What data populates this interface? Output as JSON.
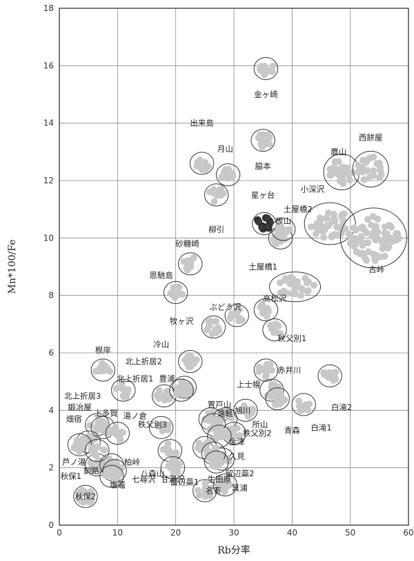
{
  "chart_data": {
    "type": "scatter",
    "xlabel": "Rb分率",
    "ylabel": "Mn*100/Fe",
    "xlim": [
      0,
      60
    ],
    "ylim": [
      0,
      18
    ],
    "xticks": [
      0,
      10,
      20,
      30,
      40,
      50,
      60
    ],
    "yticks": [
      0,
      2,
      4,
      6,
      8,
      10,
      12,
      14,
      16,
      18
    ],
    "grid": true,
    "marker_color": "#c8c8c8",
    "highlight_color": "#3a3a3a",
    "clusters": [
      {
        "name": "金ヶ崎",
        "center": [
          35.5,
          15.9
        ],
        "label_at": [
          35.5,
          15.0
        ]
      },
      {
        "name": "出来島",
        "center": [
          24.5,
          12.6
        ],
        "label_at": [
          24.5,
          14.0
        ]
      },
      {
        "name": "月山",
        "center": [
          29.0,
          12.2
        ],
        "label_at": [
          28.5,
          13.1
        ]
      },
      {
        "name": "脇本",
        "center": [
          35.0,
          13.4
        ],
        "label_at": [
          35.0,
          12.5
        ]
      },
      {
        "name": "鷹山",
        "center": [
          48.5,
          12.3
        ],
        "label_at": [
          48.0,
          13.0
        ]
      },
      {
        "name": "西餅屋",
        "center": [
          53.5,
          12.4
        ],
        "label_at": [
          53.5,
          13.5
        ]
      },
      {
        "name": "小深沢",
        "center": [
          46.5,
          10.5
        ],
        "label_at": [
          43.5,
          11.7
        ]
      },
      {
        "name": "星ヶ台",
        "center": [
          35.2,
          10.5
        ],
        "label_at": [
          35.0,
          11.5
        ],
        "highlight": true
      },
      {
        "name": "土屋橋2",
        "center": [
          38.0,
          10.0
        ],
        "label_at": [
          41.0,
          11.0
        ]
      },
      {
        "name": "板山",
        "center": [
          38.5,
          10.3
        ],
        "label_at": [
          38.5,
          10.6
        ]
      },
      {
        "name": "柳引",
        "center": [
          27.0,
          11.5
        ],
        "label_at": [
          27.0,
          10.3
        ]
      },
      {
        "name": "古峠",
        "center": [
          54.0,
          10.0
        ],
        "label_at": [
          54.5,
          8.9
        ]
      },
      {
        "name": "砂糖崎",
        "center": [
          22.5,
          9.1
        ],
        "label_at": [
          22.0,
          9.8
        ]
      },
      {
        "name": "恩馳島",
        "center": [
          20.0,
          8.1
        ],
        "label_at": [
          17.5,
          8.7
        ]
      },
      {
        "name": "土屋橋1",
        "center": [
          40.5,
          8.3
        ],
        "label_at": [
          35.0,
          9.0
        ]
      },
      {
        "name": "ぶどう沢",
        "center": [
          30.5,
          7.3
        ],
        "label_at": [
          28.5,
          7.6
        ]
      },
      {
        "name": "高松沢",
        "center": [
          35.5,
          7.5
        ],
        "label_at": [
          37.0,
          7.9
        ]
      },
      {
        "name": "牧ヶ沢",
        "center": [
          26.5,
          6.9
        ],
        "label_at": [
          21.0,
          7.1
        ]
      },
      {
        "name": "秋父別1",
        "center": [
          37.0,
          6.8
        ],
        "label_at": [
          40.0,
          6.5
        ]
      },
      {
        "name": "根岸",
        "center": [
          7.5,
          5.4
        ],
        "label_at": [
          7.5,
          6.1
        ]
      },
      {
        "name": "冷山",
        "center": [
          22.5,
          5.7
        ],
        "label_at": [
          17.5,
          6.3
        ]
      },
      {
        "name": "北上折居2",
        "center": [
          21.5,
          4.8
        ],
        "label_at": [
          14.5,
          5.7
        ]
      },
      {
        "name": "北上折居1",
        "center": [
          18.0,
          4.5
        ],
        "label_at": [
          13.0,
          5.1
        ]
      },
      {
        "name": "豊浦",
        "center": [
          21.0,
          4.7
        ],
        "label_at": [
          18.5,
          5.1
        ]
      },
      {
        "name": "赤井川",
        "center": [
          35.5,
          5.4
        ],
        "label_at": [
          39.5,
          5.4
        ]
      },
      {
        "name": "北上折居3",
        "center": [
          11.0,
          4.7
        ],
        "label_at": [
          4.0,
          4.5
        ]
      },
      {
        "name": "上士幌",
        "center": [
          36.5,
          4.7
        ],
        "label_at": [
          32.5,
          4.9
        ]
      },
      {
        "name": "白滝2",
        "center": [
          46.5,
          5.2
        ],
        "label_at": [
          48.5,
          4.1
        ]
      },
      {
        "name": "鍛冶屋",
        "center": [
          6.5,
          3.5
        ],
        "label_at": [
          3.5,
          4.1
        ]
      },
      {
        "name": "畑宿",
        "center": [
          5.0,
          2.9
        ],
        "label_at": [
          2.5,
          3.7
        ]
      },
      {
        "name": "上多賀",
        "center": [
          7.5,
          3.4
        ],
        "label_at": [
          8.0,
          3.9
        ]
      },
      {
        "name": "湯ノ倉",
        "center": [
          10.0,
          3.2
        ],
        "label_at": [
          13.0,
          3.8
        ]
      },
      {
        "name": "置戸山",
        "center": [
          26.0,
          3.7
        ],
        "label_at": [
          27.5,
          4.2
        ]
      },
      {
        "name": "旭川",
        "center": [
          28.5,
          3.7
        ],
        "label_at": [
          31.5,
          4.0
        ]
      },
      {
        "name": "遠軽",
        "center": [
          26.5,
          3.5
        ],
        "label_at": [
          28.5,
          3.9
        ]
      },
      {
        "name": "青森",
        "center": [
          37.5,
          4.4
        ],
        "label_at": [
          40.0,
          3.3
        ]
      },
      {
        "name": "白滝1",
        "center": [
          42.0,
          4.2
        ],
        "label_at": [
          45.0,
          3.4
        ]
      },
      {
        "name": "秩父別3",
        "center": [
          17.5,
          3.4
        ],
        "label_at": [
          16.0,
          3.5
        ]
      },
      {
        "name": "所山",
        "center": [
          32.0,
          4.0
        ],
        "label_at": [
          34.5,
          3.5
        ]
      },
      {
        "name": "秩父別2",
        "center": [
          30.0,
          3.2
        ],
        "label_at": [
          34.0,
          3.2
        ]
      },
      {
        "name": "金津",
        "center": [
          27.5,
          3.1
        ],
        "label_at": [
          30.5,
          2.9
        ]
      },
      {
        "name": "芦ノ湯",
        "center": [
          3.5,
          2.8
        ],
        "label_at": [
          2.5,
          2.2
        ]
      },
      {
        "name": "秋保1",
        "center": [
          6.5,
          2.1
        ],
        "label_at": [
          2.0,
          1.7
        ]
      },
      {
        "name": "釧路",
        "center": [
          6.5,
          2.6
        ],
        "label_at": [
          5.5,
          1.9
        ]
      },
      {
        "name": "柏峠",
        "center": [
          9.0,
          2.1
        ],
        "label_at": [
          12.5,
          2.2
        ]
      },
      {
        "name": "八森山",
        "center": [
          19.0,
          2.6
        ],
        "label_at": [
          16.0,
          1.8
        ]
      },
      {
        "name": "留辺蘂1",
        "center": [
          25.0,
          2.7
        ],
        "label_at": [
          21.5,
          1.5
        ]
      },
      {
        "name": "久見",
        "center": [
          28.0,
          2.3
        ],
        "label_at": [
          30.5,
          2.4
        ]
      },
      {
        "name": "七尋沢",
        "center": [
          9.5,
          1.9
        ],
        "label_at": [
          14.5,
          1.6
        ]
      },
      {
        "name": "塩竈",
        "center": [
          9.0,
          1.7
        ],
        "label_at": [
          10.0,
          1.4
        ]
      },
      {
        "name": "甘湯沢",
        "center": [
          19.5,
          2.0
        ],
        "label_at": [
          19.5,
          1.6
        ]
      },
      {
        "name": "留辺蘂2",
        "center": [
          26.5,
          2.5
        ],
        "label_at": [
          31.0,
          1.8
        ]
      },
      {
        "name": "生田原",
        "center": [
          27.0,
          2.2
        ],
        "label_at": [
          27.5,
          1.6
        ]
      },
      {
        "name": "秋保2",
        "center": [
          4.5,
          1.0
        ],
        "label_at": [
          4.5,
          1.0
        ]
      },
      {
        "name": "名寄",
        "center": [
          25.0,
          1.2
        ],
        "label_at": [
          26.5,
          1.2
        ]
      },
      {
        "name": "箕浦",
        "center": [
          28.5,
          1.4
        ],
        "label_at": [
          31.0,
          1.3
        ]
      }
    ]
  }
}
